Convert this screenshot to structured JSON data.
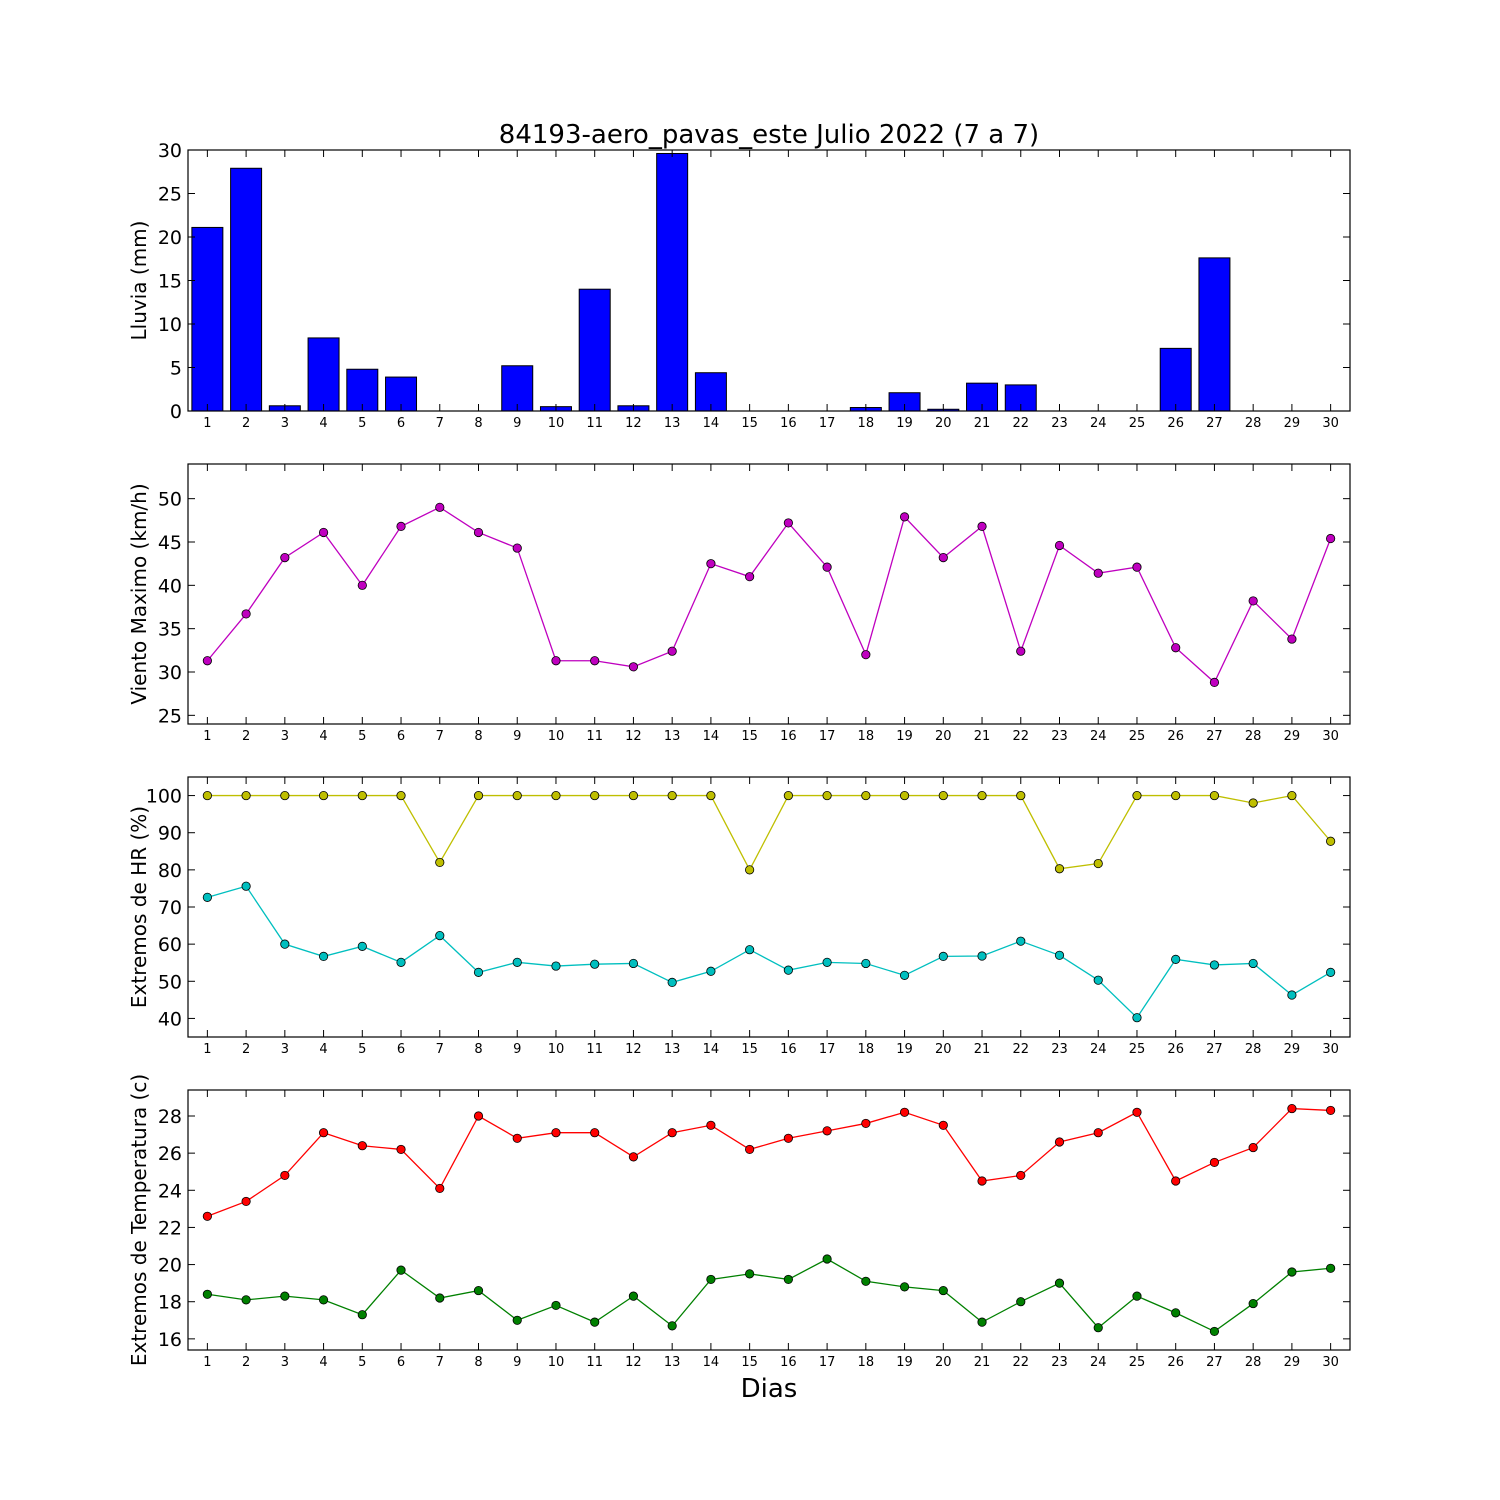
{
  "title": "84193-aero_pavas_este Julio 2022  (7 a 7)",
  "xlabel": "Dias",
  "colors": {
    "rain_bar": "#0000ff",
    "wind": "#bf00bf",
    "hr_max": "#bfbf00",
    "hr_min": "#00bfbf",
    "temp_max": "#ff0000",
    "temp_min": "#008000"
  },
  "chart_data": [
    {
      "type": "bar",
      "ylabel": "Lluvia (mm)",
      "categories": [
        1,
        2,
        3,
        4,
        5,
        6,
        7,
        8,
        9,
        10,
        11,
        12,
        13,
        14,
        15,
        16,
        17,
        18,
        19,
        20,
        21,
        22,
        23,
        24,
        25,
        26,
        27,
        28,
        29,
        30
      ],
      "ylim": [
        0,
        30
      ],
      "yticks": [
        0,
        5,
        10,
        15,
        20,
        25,
        30
      ],
      "series": [
        {
          "values": [
            21.1,
            27.9,
            0.6,
            8.4,
            4.8,
            3.9,
            0,
            0,
            5.2,
            0.5,
            14.0,
            0.6,
            29.6,
            4.4,
            0,
            0,
            0,
            0.4,
            2.1,
            0.2,
            3.2,
            3.0,
            0,
            0,
            0,
            7.2,
            17.6,
            0,
            0,
            0
          ]
        }
      ]
    },
    {
      "type": "line",
      "ylabel": "Viento Maximo (km/h)",
      "x": [
        1,
        2,
        3,
        4,
        5,
        6,
        7,
        8,
        9,
        10,
        11,
        12,
        13,
        14,
        15,
        16,
        17,
        18,
        19,
        20,
        21,
        22,
        23,
        24,
        25,
        26,
        27,
        28,
        29,
        30
      ],
      "ylim": [
        24,
        54
      ],
      "yticks": [
        25,
        30,
        35,
        40,
        45,
        50
      ],
      "series": [
        {
          "values": [
            31.3,
            36.7,
            43.2,
            46.1,
            40.0,
            46.8,
            49.0,
            46.1,
            44.3,
            31.3,
            31.3,
            30.6,
            32.4,
            42.5,
            41.0,
            47.2,
            42.1,
            32.0,
            47.9,
            43.2,
            46.8,
            32.4,
            44.6,
            41.4,
            42.1,
            32.8,
            28.8,
            38.2,
            33.8,
            45.4
          ]
        }
      ]
    },
    {
      "type": "line",
      "ylabel": "Extremos de HR (%)",
      "x": [
        1,
        2,
        3,
        4,
        5,
        6,
        7,
        8,
        9,
        10,
        11,
        12,
        13,
        14,
        15,
        16,
        17,
        18,
        19,
        20,
        21,
        22,
        23,
        24,
        25,
        26,
        27,
        28,
        29,
        30
      ],
      "ylim": [
        35,
        105
      ],
      "yticks": [
        40,
        50,
        60,
        70,
        80,
        90,
        100
      ],
      "series": [
        {
          "values": [
            100,
            100,
            100,
            100,
            100,
            100,
            82,
            100,
            100,
            100,
            100,
            100,
            100,
            100,
            80,
            100,
            100,
            100,
            100,
            100,
            100,
            100,
            80.3,
            81.7,
            100,
            100,
            100,
            98,
            100,
            87.7
          ]
        },
        {
          "values": [
            72.6,
            75.6,
            60.0,
            56.7,
            59.4,
            55.1,
            62.3,
            52.4,
            55.1,
            54.1,
            54.6,
            54.8,
            49.7,
            52.7,
            58.5,
            53.0,
            55.1,
            54.8,
            51.6,
            56.7,
            56.8,
            60.8,
            57.0,
            50.3,
            40.2,
            55.9,
            54.4,
            54.8,
            46.3,
            52.4
          ]
        }
      ]
    },
    {
      "type": "line",
      "ylabel": "Extremos de Temperatura (c)",
      "x": [
        1,
        2,
        3,
        4,
        5,
        6,
        7,
        8,
        9,
        10,
        11,
        12,
        13,
        14,
        15,
        16,
        17,
        18,
        19,
        20,
        21,
        22,
        23,
        24,
        25,
        26,
        27,
        28,
        29,
        30
      ],
      "ylim": [
        15.4,
        29.4
      ],
      "yticks": [
        16,
        18,
        20,
        22,
        24,
        26,
        28
      ],
      "series": [
        {
          "values": [
            22.6,
            23.4,
            24.8,
            27.1,
            26.4,
            26.2,
            24.1,
            28.0,
            26.8,
            27.1,
            27.1,
            25.8,
            27.1,
            27.5,
            26.2,
            26.8,
            27.2,
            27.6,
            28.2,
            27.5,
            24.5,
            24.8,
            26.6,
            27.1,
            28.2,
            24.5,
            25.5,
            26.3,
            28.4,
            28.3
          ]
        },
        {
          "values": [
            18.4,
            18.1,
            18.3,
            18.1,
            17.3,
            19.7,
            18.2,
            18.6,
            17.0,
            17.8,
            16.9,
            18.3,
            16.7,
            19.2,
            19.5,
            19.2,
            20.3,
            19.1,
            18.8,
            18.6,
            16.9,
            18.0,
            19.0,
            16.6,
            18.3,
            17.4,
            16.4,
            17.9,
            19.6,
            19.8
          ]
        }
      ]
    }
  ]
}
